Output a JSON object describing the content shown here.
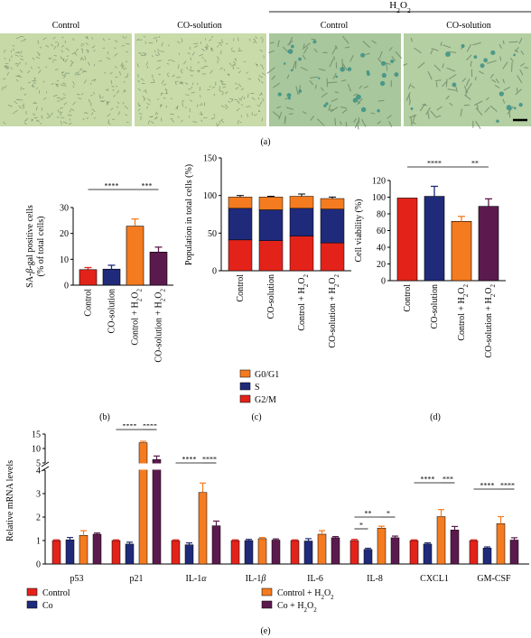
{
  "panel_a": {
    "treatment_group_label": "H2O2",
    "image_labels": [
      "Control",
      "CO-solution",
      "Control",
      "CO-solution"
    ],
    "tile_colors": [
      "#c6d9a6",
      "#c8dba8",
      "#a8c79c",
      "#b4cfa2"
    ],
    "cell_color": "#6f8a6a",
    "stain_color": "#3b8f86",
    "panel_label": "(a)"
  },
  "panel_b": {
    "panel_label": "(b)"
  },
  "panel_c": {
    "panel_label": "(c)"
  },
  "panel_d": {
    "panel_label": "(d)"
  },
  "panel_e": {
    "panel_label": "(e)"
  },
  "colors": {
    "control": "#e3231a",
    "co": "#1f2a7a",
    "control_h2o2": "#f47b20",
    "co_h2o2": "#5b1a4d",
    "g0g1": "#f47b20",
    "s": "#1f2a7a",
    "g2m": "#e3231a"
  },
  "chart_data": [
    {
      "id": "b",
      "type": "bar",
      "ylabel": "SA-β-gal positive cells (% of total cells)",
      "categories": [
        "Control",
        "CO-solution",
        "Control + H2O2",
        "CO-solution + H2O2"
      ],
      "values": [
        6.0,
        6.2,
        22.8,
        12.8
      ],
      "errors": [
        0.8,
        1.5,
        2.8,
        1.9
      ],
      "ylim": [
        0,
        30
      ],
      "yticks": [
        0,
        10,
        20,
        30
      ],
      "significance": [
        {
          "from": 0,
          "to": 2,
          "label": "****"
        },
        {
          "from": 2,
          "to": 3,
          "label": "***"
        }
      ]
    },
    {
      "id": "c",
      "type": "bar",
      "stacked": true,
      "ylabel": "Population in total cells (%)",
      "categories": [
        "Control",
        "CO-solution",
        "Control + H2O2",
        "CO-solution + H2O2"
      ],
      "series": [
        {
          "name": "G2/M",
          "values": [
            41,
            40,
            46,
            37
          ]
        },
        {
          "name": "S",
          "values": [
            42,
            41,
            37,
            45
          ]
        },
        {
          "name": "G0/G1",
          "values": [
            15,
            17,
            16,
            14
          ]
        }
      ],
      "totals_error": [
        2,
        1,
        3,
        2
      ],
      "ylim": [
        0,
        150
      ],
      "yticks": [
        0,
        50,
        100,
        150
      ],
      "legend": [
        "G0/G1",
        "S",
        "G2/M"
      ],
      "legend_position": "bottom"
    },
    {
      "id": "d",
      "type": "bar",
      "ylabel": "Cell viability (%)",
      "categories": [
        "Control",
        "CO-solution",
        "Control + H2O2",
        "CO-solution + H2O2"
      ],
      "values": [
        99,
        101,
        71,
        89
      ],
      "errors": [
        0,
        12,
        6,
        9
      ],
      "ylim": [
        0,
        120
      ],
      "yticks": [
        0,
        20,
        40,
        60,
        80,
        100,
        120
      ],
      "significance": [
        {
          "from": 0,
          "to": 2,
          "label": "****"
        },
        {
          "from": 2,
          "to": 3,
          "label": "**"
        }
      ]
    },
    {
      "id": "e",
      "type": "bar",
      "grouped": true,
      "ylabel": "Relative mRNA levels",
      "categories": [
        "p53",
        "p21",
        "IL-1α",
        "IL-1β",
        "IL-6",
        "IL-8",
        "CXCL1",
        "GM-CSF"
      ],
      "series": [
        {
          "name": "Control",
          "values": [
            1,
            1,
            1,
            1,
            1,
            1,
            1,
            1
          ],
          "errors": [
            0.03,
            0.03,
            0.03,
            0.03,
            0.03,
            0.05,
            0.03,
            0.03
          ]
        },
        {
          "name": "Co",
          "values": [
            1.03,
            0.85,
            0.82,
            1.0,
            0.98,
            0.62,
            0.85,
            0.68
          ],
          "errors": [
            0.1,
            0.08,
            0.08,
            0.05,
            0.1,
            0.05,
            0.05,
            0.05
          ]
        },
        {
          "name": "Control + H2O2",
          "values": [
            1.22,
            12,
            3.05,
            1.08,
            1.27,
            1.53,
            2.02,
            1.72
          ],
          "errors": [
            0.2,
            0.5,
            0.4,
            0.05,
            0.15,
            0.08,
            0.3,
            0.3
          ]
        },
        {
          "name": "Co + H2O2",
          "values": [
            1.27,
            6.2,
            1.63,
            1.02,
            1.12,
            1.12,
            1.45,
            1.02
          ],
          "errors": [
            0.05,
            1.2,
            0.2,
            0.05,
            0.05,
            0.07,
            0.15,
            0.1
          ]
        }
      ],
      "axis_break": [
        4,
        5
      ],
      "yticks_lower": [
        0,
        1,
        2,
        3,
        4
      ],
      "yticks_upper": [
        5,
        10,
        15
      ],
      "significance": [
        {
          "category": 1,
          "from": 0,
          "to": 2,
          "label": "****"
        },
        {
          "category": 1,
          "from": 2,
          "to": 3,
          "label": "****"
        },
        {
          "category": 2,
          "from": 0,
          "to": 2,
          "label": "****"
        },
        {
          "category": 2,
          "from": 2,
          "to": 3,
          "label": "****"
        },
        {
          "category": 5,
          "from": 0,
          "to": 1,
          "label": "*"
        },
        {
          "category": 5,
          "from": 0,
          "to": 2,
          "label": "**"
        },
        {
          "category": 5,
          "from": 2,
          "to": 3,
          "label": "*"
        },
        {
          "category": 6,
          "from": 0,
          "to": 2,
          "label": "****"
        },
        {
          "category": 6,
          "from": 2,
          "to": 3,
          "label": "***"
        },
        {
          "category": 7,
          "from": 0,
          "to": 2,
          "label": "****"
        },
        {
          "category": 7,
          "from": 2,
          "to": 3,
          "label": "****"
        }
      ],
      "legend": [
        "Control",
        "Co",
        "Control + H2O2",
        "Co + H2O2"
      ],
      "legend_position": "bottom"
    }
  ]
}
